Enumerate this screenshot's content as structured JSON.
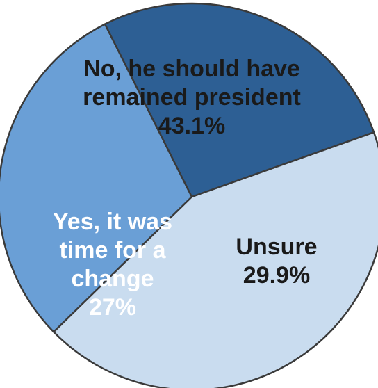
{
  "chart_data": {
    "type": "pie",
    "slices": [
      {
        "label_lines": [
          "No, he should have",
          "remained president"
        ],
        "value": 43.1,
        "value_label": "43.1%",
        "color": "#c9dcef",
        "text_color": "#1a1a1a"
      },
      {
        "label_lines": [
          "Unsure"
        ],
        "value": 29.9,
        "value_label": "29.9%",
        "color": "#6a9fd6",
        "text_color": "#1a1a1a"
      },
      {
        "label_lines": [
          "Yes, it was",
          "time for a",
          "change"
        ],
        "value": 27,
        "value_label": "27%",
        "color": "#2d5f94",
        "text_color": "#ffffff"
      }
    ],
    "border_color": "#3a3a3a"
  }
}
